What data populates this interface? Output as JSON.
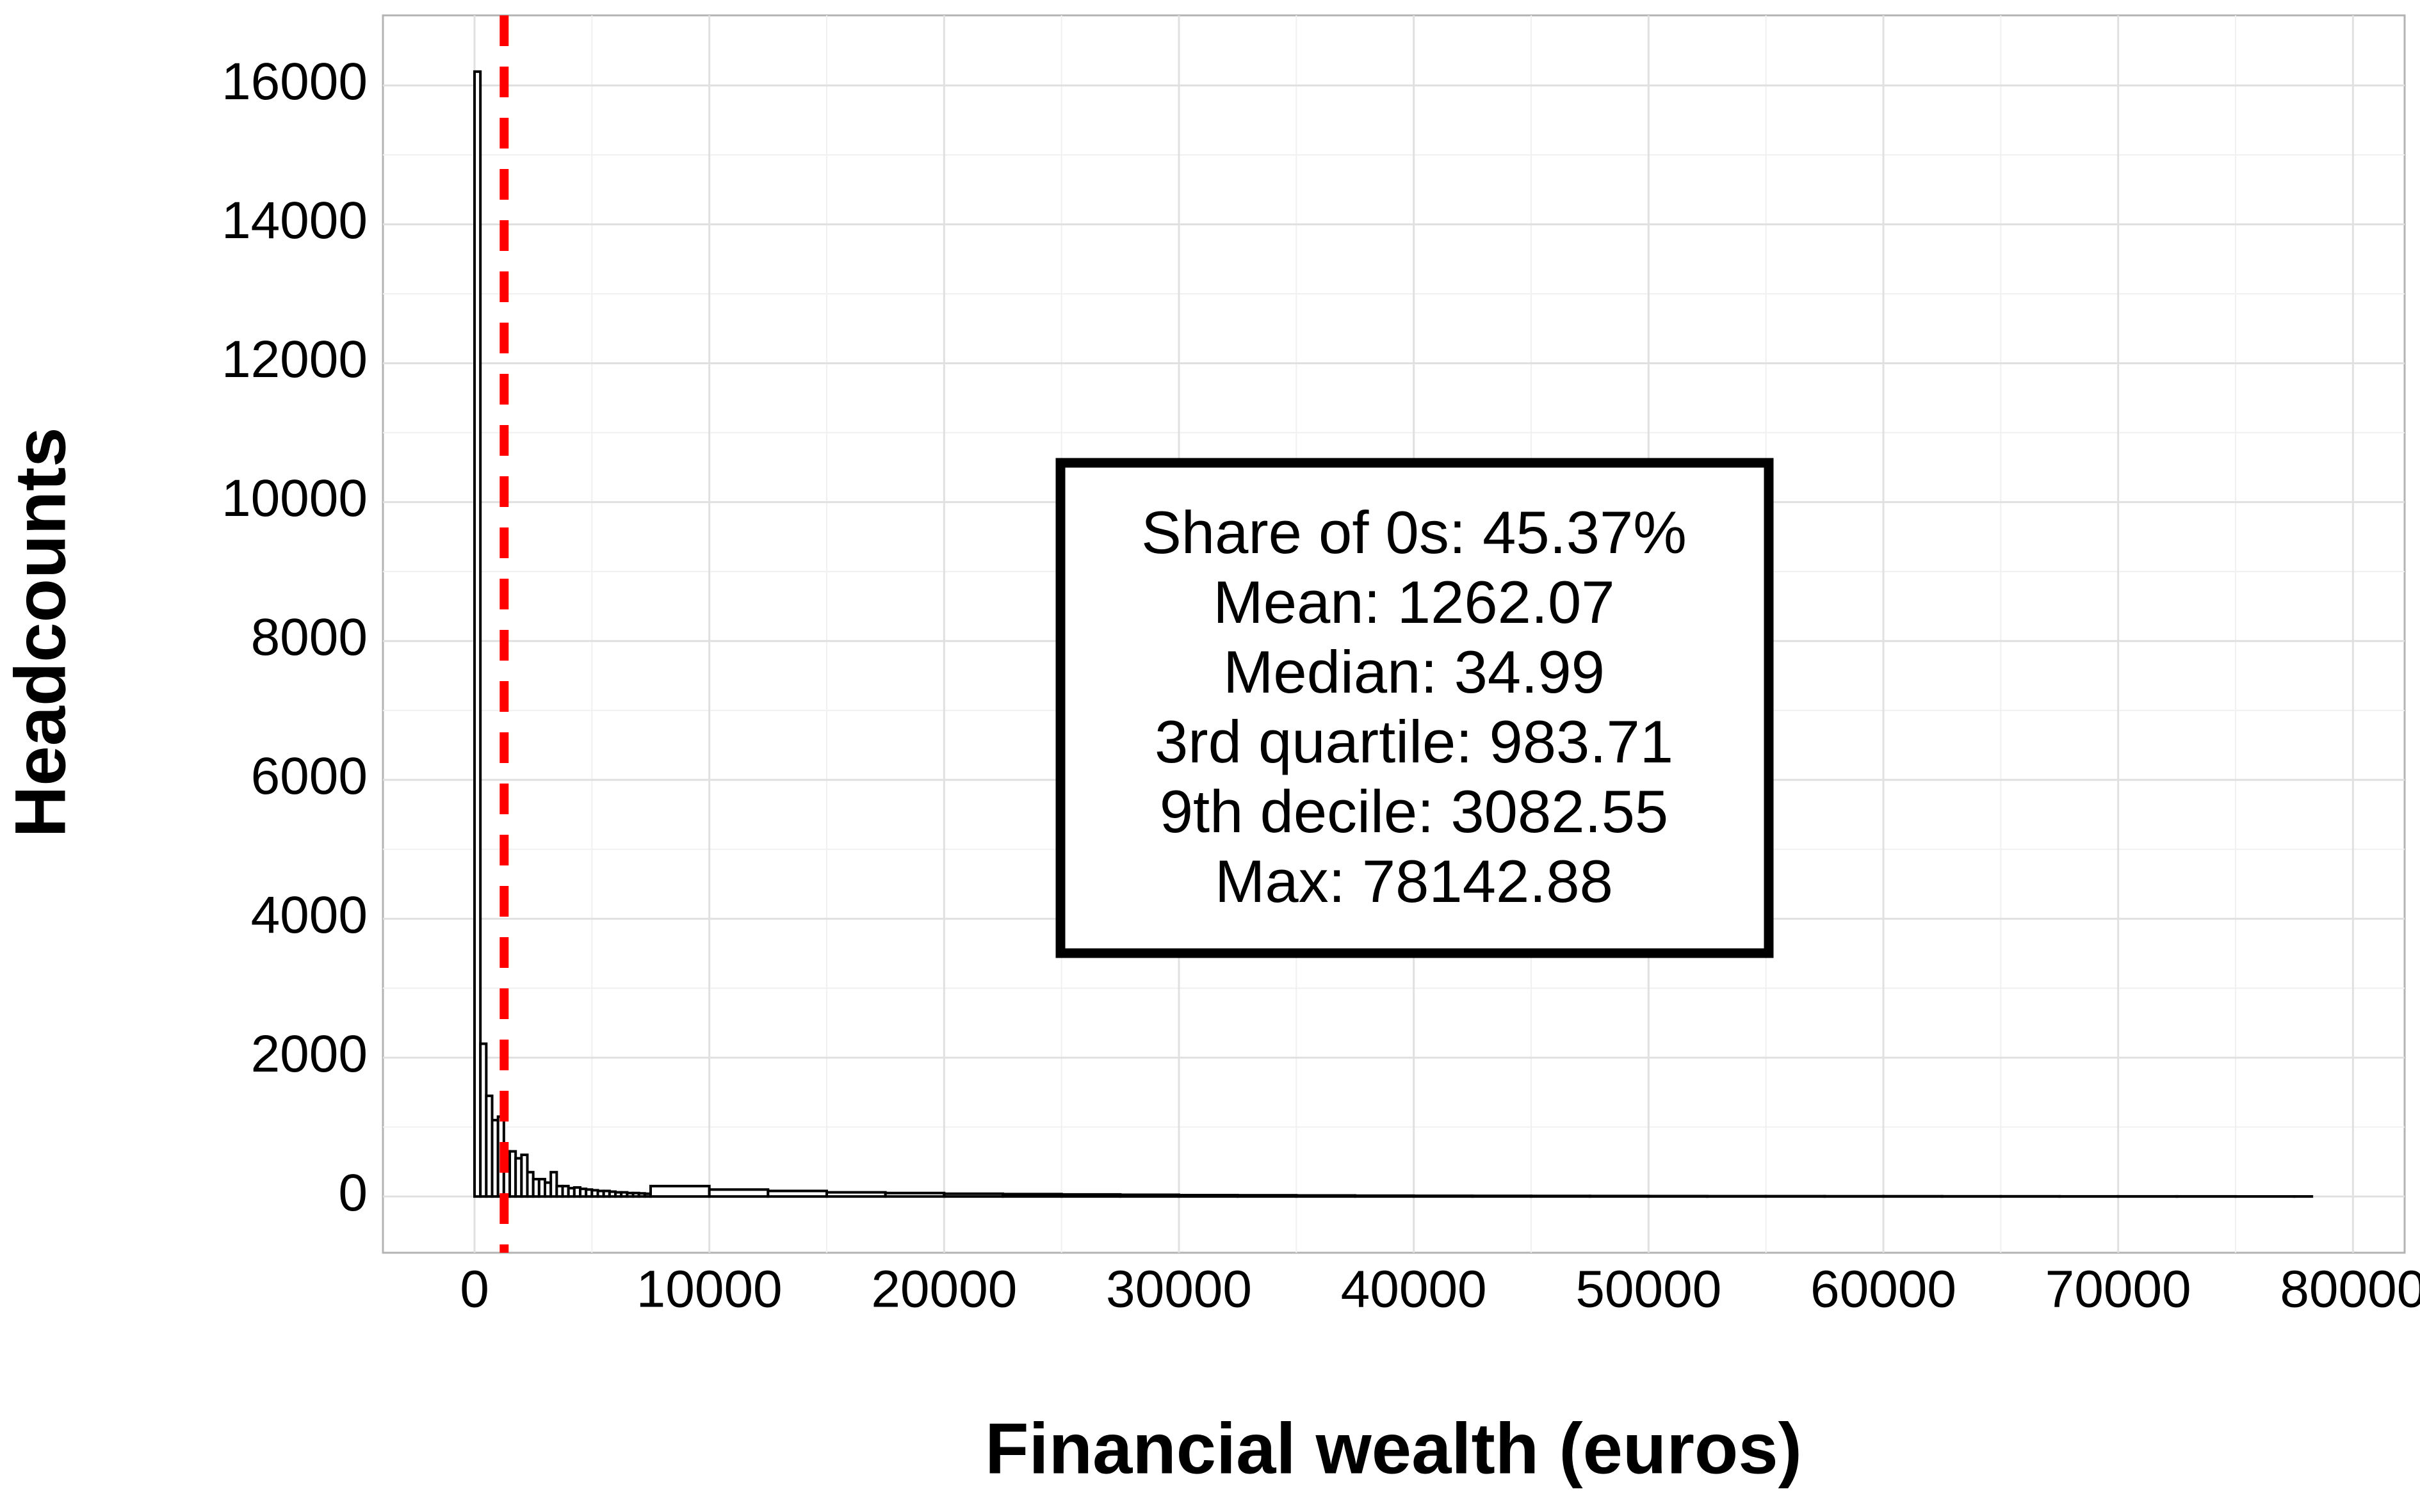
{
  "chart_data": {
    "type": "histogram",
    "x_label": "Financial wealth (euros)",
    "y_label": "Headcounts",
    "bins": [
      0,
      250,
      500,
      750,
      1000,
      1250,
      1500,
      1750,
      2000,
      2250,
      2500,
      2750,
      3000,
      3250,
      3500,
      3750,
      4000,
      4250,
      4500,
      4750,
      5000,
      5250,
      5500,
      5750,
      6000,
      6250,
      6500,
      6750,
      7000,
      7250,
      7500,
      10000,
      12500,
      15000,
      17500,
      20000,
      22500,
      25000,
      27500,
      30000,
      32500,
      35000,
      37500,
      40000,
      42500,
      45000,
      47500,
      50000,
      52500,
      55000,
      57500,
      60000,
      62500,
      65000,
      67500,
      70000,
      72500,
      75000,
      77500,
      78250
    ],
    "values": [
      16200,
      2200,
      1450,
      1100,
      1150,
      650,
      650,
      550,
      600,
      350,
      250,
      250,
      200,
      350,
      150,
      150,
      120,
      130,
      110,
      100,
      90,
      80,
      80,
      70,
      60,
      60,
      50,
      50,
      45,
      40,
      150,
      100,
      80,
      60,
      50,
      40,
      35,
      30,
      25,
      20,
      18,
      15,
      12,
      10,
      9,
      8,
      7,
      6,
      5,
      5,
      4,
      4,
      3,
      3,
      2,
      2,
      2,
      1,
      1
    ],
    "color": "#ffffff",
    "edge_color": "#000000",
    "mean_line": {
      "value": 1262.07,
      "color": "#ff0000"
    },
    "annotation": [
      "Share of 0s: 45.37%",
      "Mean: 1262.07",
      "Median: 34.99",
      "3rd quartile: 983.71",
      "9th decile: 3082.55",
      "Max: 78142.88"
    ],
    "xlim": [
      -3900,
      82200
    ],
    "ylim": [
      -810,
      17010
    ],
    "xticks": [
      0,
      10000,
      20000,
      30000,
      40000,
      50000,
      60000,
      70000,
      80000
    ],
    "yticks": [
      0,
      2000,
      4000,
      6000,
      8000,
      10000,
      12000,
      14000,
      16000
    ],
    "grid": true
  }
}
